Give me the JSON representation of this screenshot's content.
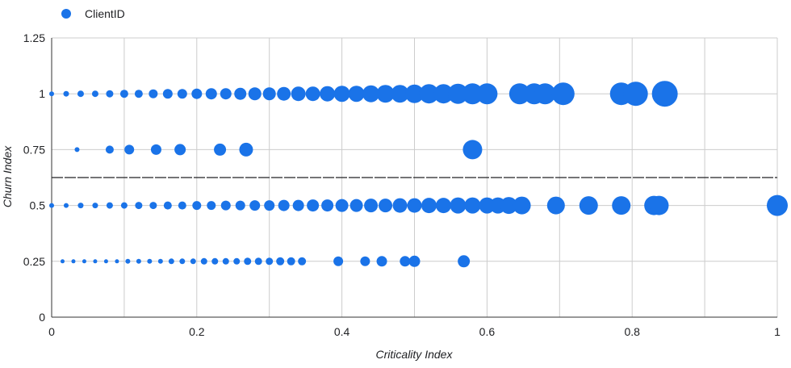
{
  "chart_data": {
    "type": "scatter",
    "xlabel": "Criticality Index",
    "ylabel": "Churn Index",
    "xlim": [
      0,
      1
    ],
    "ylim": [
      0,
      1.25
    ],
    "x_ticks": [
      "0",
      "0.2",
      "0.4",
      "0.6",
      "0.8",
      "1"
    ],
    "y_ticks": [
      "0",
      "0.25",
      "0.5",
      "0.75",
      "1",
      "1.25"
    ],
    "grid": true,
    "legend_position": "top-left",
    "reference_line": {
      "y": 0.625,
      "style": "dashed"
    },
    "series": [
      {
        "name": "ClientID",
        "color": "#1a73e8",
        "points": [
          {
            "x": 0.0,
            "y": 1,
            "size": 3
          },
          {
            "x": 0.02,
            "y": 1,
            "size": 3.5
          },
          {
            "x": 0.04,
            "y": 1,
            "size": 4
          },
          {
            "x": 0.06,
            "y": 1,
            "size": 4
          },
          {
            "x": 0.08,
            "y": 1,
            "size": 4.5
          },
          {
            "x": 0.1,
            "y": 1,
            "size": 5
          },
          {
            "x": 0.12,
            "y": 1,
            "size": 5
          },
          {
            "x": 0.14,
            "y": 1,
            "size": 5.5
          },
          {
            "x": 0.16,
            "y": 1,
            "size": 6
          },
          {
            "x": 0.18,
            "y": 1,
            "size": 6
          },
          {
            "x": 0.2,
            "y": 1,
            "size": 6.5
          },
          {
            "x": 0.22,
            "y": 1,
            "size": 7
          },
          {
            "x": 0.24,
            "y": 1,
            "size": 7
          },
          {
            "x": 0.26,
            "y": 1,
            "size": 7.5
          },
          {
            "x": 0.28,
            "y": 1,
            "size": 8
          },
          {
            "x": 0.3,
            "y": 1,
            "size": 8
          },
          {
            "x": 0.32,
            "y": 1,
            "size": 8.5
          },
          {
            "x": 0.34,
            "y": 1,
            "size": 9
          },
          {
            "x": 0.36,
            "y": 1,
            "size": 9
          },
          {
            "x": 0.38,
            "y": 1,
            "size": 9.5
          },
          {
            "x": 0.4,
            "y": 1,
            "size": 10
          },
          {
            "x": 0.42,
            "y": 1,
            "size": 10
          },
          {
            "x": 0.44,
            "y": 1,
            "size": 10.5
          },
          {
            "x": 0.46,
            "y": 1,
            "size": 11
          },
          {
            "x": 0.48,
            "y": 1,
            "size": 11
          },
          {
            "x": 0.5,
            "y": 1,
            "size": 11.5
          },
          {
            "x": 0.52,
            "y": 1,
            "size": 12
          },
          {
            "x": 0.54,
            "y": 1,
            "size": 12
          },
          {
            "x": 0.56,
            "y": 1,
            "size": 12.5
          },
          {
            "x": 0.58,
            "y": 1,
            "size": 13
          },
          {
            "x": 0.6,
            "y": 1,
            "size": 13
          },
          {
            "x": 0.645,
            "y": 1,
            "size": 13
          },
          {
            "x": 0.665,
            "y": 1,
            "size": 13
          },
          {
            "x": 0.68,
            "y": 1,
            "size": 13
          },
          {
            "x": 0.705,
            "y": 1,
            "size": 14
          },
          {
            "x": 0.785,
            "y": 1,
            "size": 14
          },
          {
            "x": 0.805,
            "y": 1,
            "size": 15
          },
          {
            "x": 0.845,
            "y": 1,
            "size": 16
          },
          {
            "x": 0.035,
            "y": 0.75,
            "size": 3
          },
          {
            "x": 0.08,
            "y": 0.75,
            "size": 5
          },
          {
            "x": 0.107,
            "y": 0.75,
            "size": 6
          },
          {
            "x": 0.144,
            "y": 0.75,
            "size": 6.5
          },
          {
            "x": 0.177,
            "y": 0.75,
            "size": 7
          },
          {
            "x": 0.232,
            "y": 0.75,
            "size": 7.5
          },
          {
            "x": 0.268,
            "y": 0.75,
            "size": 8.5
          },
          {
            "x": 0.58,
            "y": 0.75,
            "size": 12
          },
          {
            "x": 0.0,
            "y": 0.5,
            "size": 3
          },
          {
            "x": 0.02,
            "y": 0.5,
            "size": 3
          },
          {
            "x": 0.04,
            "y": 0.5,
            "size": 3.5
          },
          {
            "x": 0.06,
            "y": 0.5,
            "size": 3.5
          },
          {
            "x": 0.08,
            "y": 0.5,
            "size": 4
          },
          {
            "x": 0.1,
            "y": 0.5,
            "size": 4
          },
          {
            "x": 0.12,
            "y": 0.5,
            "size": 4.5
          },
          {
            "x": 0.14,
            "y": 0.5,
            "size": 4.5
          },
          {
            "x": 0.16,
            "y": 0.5,
            "size": 5
          },
          {
            "x": 0.18,
            "y": 0.5,
            "size": 5
          },
          {
            "x": 0.2,
            "y": 0.5,
            "size": 5.5
          },
          {
            "x": 0.22,
            "y": 0.5,
            "size": 5.5
          },
          {
            "x": 0.24,
            "y": 0.5,
            "size": 6
          },
          {
            "x": 0.26,
            "y": 0.5,
            "size": 6
          },
          {
            "x": 0.28,
            "y": 0.5,
            "size": 6.5
          },
          {
            "x": 0.3,
            "y": 0.5,
            "size": 6.5
          },
          {
            "x": 0.32,
            "y": 0.5,
            "size": 7
          },
          {
            "x": 0.34,
            "y": 0.5,
            "size": 7
          },
          {
            "x": 0.36,
            "y": 0.5,
            "size": 7.5
          },
          {
            "x": 0.38,
            "y": 0.5,
            "size": 7.5
          },
          {
            "x": 0.4,
            "y": 0.5,
            "size": 8
          },
          {
            "x": 0.42,
            "y": 0.5,
            "size": 8
          },
          {
            "x": 0.44,
            "y": 0.5,
            "size": 8.5
          },
          {
            "x": 0.46,
            "y": 0.5,
            "size": 8.5
          },
          {
            "x": 0.48,
            "y": 0.5,
            "size": 9
          },
          {
            "x": 0.5,
            "y": 0.5,
            "size": 9
          },
          {
            "x": 0.52,
            "y": 0.5,
            "size": 9.5
          },
          {
            "x": 0.54,
            "y": 0.5,
            "size": 9.5
          },
          {
            "x": 0.56,
            "y": 0.5,
            "size": 10
          },
          {
            "x": 0.58,
            "y": 0.5,
            "size": 10
          },
          {
            "x": 0.6,
            "y": 0.5,
            "size": 10
          },
          {
            "x": 0.615,
            "y": 0.5,
            "size": 10
          },
          {
            "x": 0.63,
            "y": 0.5,
            "size": 10.5
          },
          {
            "x": 0.648,
            "y": 0.5,
            "size": 11
          },
          {
            "x": 0.695,
            "y": 0.5,
            "size": 11
          },
          {
            "x": 0.74,
            "y": 0.5,
            "size": 11.5
          },
          {
            "x": 0.785,
            "y": 0.5,
            "size": 11.5
          },
          {
            "x": 0.83,
            "y": 0.5,
            "size": 12
          },
          {
            "x": 0.837,
            "y": 0.5,
            "size": 12
          },
          {
            "x": 1.0,
            "y": 0.5,
            "size": 13
          },
          {
            "x": 0.015,
            "y": 0.25,
            "size": 2.5
          },
          {
            "x": 0.03,
            "y": 0.25,
            "size": 2.5
          },
          {
            "x": 0.045,
            "y": 0.25,
            "size": 2.5
          },
          {
            "x": 0.06,
            "y": 0.25,
            "size": 2.5
          },
          {
            "x": 0.075,
            "y": 0.25,
            "size": 2.5
          },
          {
            "x": 0.09,
            "y": 0.25,
            "size": 2.5
          },
          {
            "x": 0.105,
            "y": 0.25,
            "size": 3
          },
          {
            "x": 0.12,
            "y": 0.25,
            "size": 3
          },
          {
            "x": 0.135,
            "y": 0.25,
            "size": 3
          },
          {
            "x": 0.15,
            "y": 0.25,
            "size": 3
          },
          {
            "x": 0.165,
            "y": 0.25,
            "size": 3.5
          },
          {
            "x": 0.18,
            "y": 0.25,
            "size": 3.5
          },
          {
            "x": 0.195,
            "y": 0.25,
            "size": 3.5
          },
          {
            "x": 0.21,
            "y": 0.25,
            "size": 4
          },
          {
            "x": 0.225,
            "y": 0.25,
            "size": 4
          },
          {
            "x": 0.24,
            "y": 0.25,
            "size": 4
          },
          {
            "x": 0.255,
            "y": 0.25,
            "size": 4
          },
          {
            "x": 0.27,
            "y": 0.25,
            "size": 4.5
          },
          {
            "x": 0.285,
            "y": 0.25,
            "size": 4.5
          },
          {
            "x": 0.3,
            "y": 0.25,
            "size": 4.5
          },
          {
            "x": 0.315,
            "y": 0.25,
            "size": 5
          },
          {
            "x": 0.33,
            "y": 0.25,
            "size": 5
          },
          {
            "x": 0.345,
            "y": 0.25,
            "size": 5
          },
          {
            "x": 0.395,
            "y": 0.25,
            "size": 6
          },
          {
            "x": 0.432,
            "y": 0.25,
            "size": 6
          },
          {
            "x": 0.455,
            "y": 0.25,
            "size": 6.5
          },
          {
            "x": 0.487,
            "y": 0.25,
            "size": 6.5
          },
          {
            "x": 0.5,
            "y": 0.25,
            "size": 7
          },
          {
            "x": 0.568,
            "y": 0.25,
            "size": 7.5
          }
        ]
      }
    ]
  }
}
